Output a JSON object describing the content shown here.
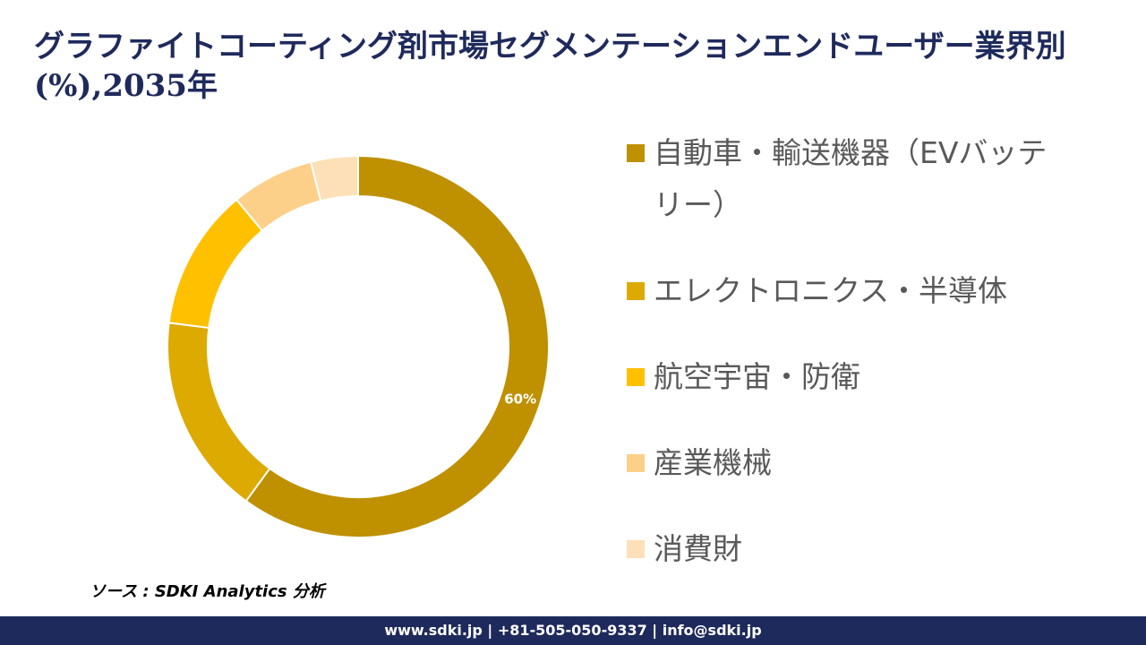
{
  "chart_data": {
    "type": "donut",
    "title": "グラファイトコーティング剤市場セグメンテーションエンドユーザー業界別(%),2035年",
    "categories": [
      "自動車・輸送機器（EVバッテリー）",
      "エレクトロニクス・半導体",
      "航空宇宙・防衛",
      "産業機械",
      "消費財"
    ],
    "values": [
      60,
      17,
      12,
      7,
      4
    ],
    "value_labels": [
      "60%",
      null,
      null,
      null,
      null
    ],
    "colors": [
      "#bf9000",
      "#dcaa00",
      "#ffc000",
      "#fdd08a",
      "#fde0b8"
    ]
  },
  "source": "ソース : SDKI Analytics 分析",
  "footer": "www.sdki.jp | +81-505-050-9337 | info@sdki.jp"
}
